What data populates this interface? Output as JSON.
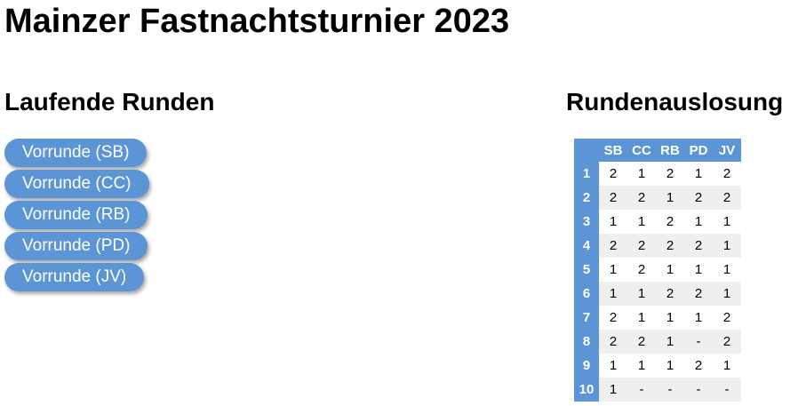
{
  "page": {
    "title": "Mainzer Fastnachtsturnier 2023"
  },
  "running_rounds": {
    "heading": "Laufende Runden",
    "items": [
      {
        "label": "Vorrunde (SB)"
      },
      {
        "label": "Vorrunde (CC)"
      },
      {
        "label": "Vorrunde (RB)"
      },
      {
        "label": "Vorrunde (PD)"
      },
      {
        "label": "Vorrunde (JV)"
      }
    ]
  },
  "draw": {
    "heading": "Rundenauslosung",
    "columns": [
      "SB",
      "CC",
      "RB",
      "PD",
      "JV"
    ],
    "rows": [
      {
        "round": "1",
        "cells": [
          "2",
          "1",
          "2",
          "1",
          "2"
        ]
      },
      {
        "round": "2",
        "cells": [
          "2",
          "2",
          "1",
          "2",
          "2"
        ]
      },
      {
        "round": "3",
        "cells": [
          "1",
          "1",
          "2",
          "1",
          "1"
        ]
      },
      {
        "round": "4",
        "cells": [
          "2",
          "2",
          "2",
          "2",
          "1"
        ]
      },
      {
        "round": "5",
        "cells": [
          "1",
          "2",
          "1",
          "1",
          "1"
        ]
      },
      {
        "round": "6",
        "cells": [
          "1",
          "1",
          "2",
          "2",
          "1"
        ]
      },
      {
        "round": "7",
        "cells": [
          "2",
          "1",
          "1",
          "1",
          "2"
        ]
      },
      {
        "round": "8",
        "cells": [
          "2",
          "2",
          "1",
          "-",
          "2"
        ]
      },
      {
        "round": "9",
        "cells": [
          "1",
          "1",
          "1",
          "2",
          "1"
        ]
      },
      {
        "round": "10",
        "cells": [
          "1",
          "-",
          "-",
          "-",
          "-"
        ]
      }
    ]
  },
  "colors": {
    "accent": "#5b95d6",
    "row_alt": "#efefef"
  }
}
